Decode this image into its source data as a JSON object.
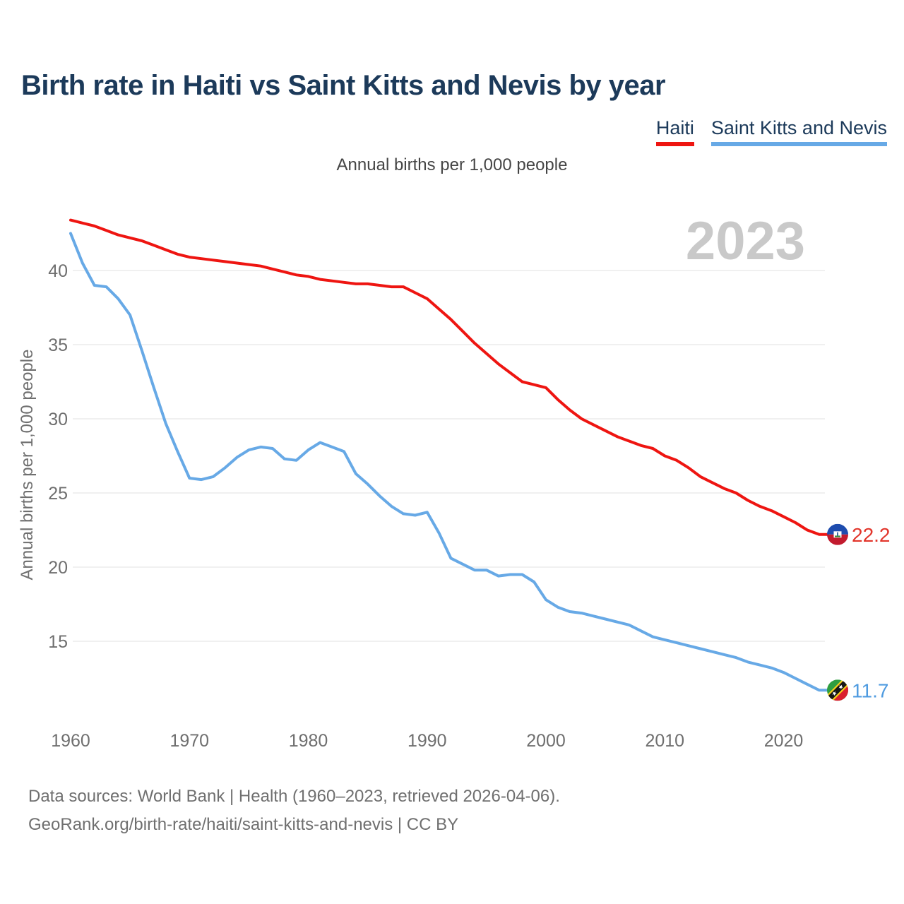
{
  "header": {
    "title": "Birth rate in Haiti vs Saint Kitts and Nevis by year"
  },
  "legend": [
    {
      "label": "Haiti",
      "color": "#ee1511"
    },
    {
      "label": "Saint Kitts and Nevis",
      "color": "#67a9e6"
    }
  ],
  "subtitle": "Annual births per 1,000 people",
  "footer": {
    "line1": "Data sources: World Bank | Health (1960–2023, retrieved 2026-04-06).",
    "line2": "GeoRank.org/birth-rate/haiti/saint-kitts-and-nevis | CC BY"
  },
  "chart_data": {
    "type": "line",
    "title": "Birth rate in Haiti vs Saint Kitts and Nevis by year",
    "ylabel": "Annual births per 1,000 people",
    "watermark": "2023",
    "x_start": 1960,
    "x_end": 2023,
    "x_ticks": [
      1960,
      1970,
      1980,
      1990,
      2000,
      2010,
      2020
    ],
    "y_ticks": [
      15,
      20,
      25,
      30,
      35,
      40
    ],
    "ylim": [
      10.5,
      43.5
    ],
    "grid": "horizontal",
    "legend_position": "top-right",
    "series": [
      {
        "name": "Haiti",
        "color": "#ee1511",
        "label_color": "#e2352b",
        "end_label": "22.2",
        "flag_icon": "haiti-flag-icon",
        "values": [
          43.4,
          43.2,
          43.0,
          42.7,
          42.4,
          42.2,
          42.0,
          41.7,
          41.4,
          41.1,
          40.9,
          40.8,
          40.7,
          40.6,
          40.5,
          40.4,
          40.3,
          40.1,
          39.9,
          39.7,
          39.6,
          39.4,
          39.3,
          39.2,
          39.1,
          39.1,
          39.0,
          38.9,
          38.9,
          38.5,
          38.1,
          37.4,
          36.7,
          35.9,
          35.1,
          34.4,
          33.7,
          33.1,
          32.5,
          32.3,
          32.1,
          31.3,
          30.6,
          30.0,
          29.6,
          29.2,
          28.8,
          28.5,
          28.2,
          28.0,
          27.5,
          27.2,
          26.7,
          26.1,
          25.7,
          25.3,
          25.0,
          24.5,
          24.1,
          23.8,
          23.4,
          23.0,
          22.5,
          22.2
        ]
      },
      {
        "name": "Saint Kitts and Nevis",
        "color": "#67a9e6",
        "label_color": "#4f9be0",
        "end_label": "11.7",
        "flag_icon": "saint-kitts-and-nevis-flag-icon",
        "values": [
          42.5,
          40.5,
          39.0,
          38.9,
          38.1,
          37.0,
          34.6,
          32.1,
          29.7,
          27.8,
          26.0,
          25.9,
          26.1,
          26.7,
          27.4,
          27.9,
          28.1,
          28.0,
          27.3,
          27.2,
          27.9,
          28.4,
          28.1,
          27.8,
          26.3,
          25.6,
          24.8,
          24.1,
          23.6,
          23.5,
          23.7,
          22.3,
          20.6,
          20.2,
          19.8,
          19.8,
          19.4,
          19.5,
          19.5,
          19.0,
          17.8,
          17.3,
          17.0,
          16.9,
          16.7,
          16.5,
          16.3,
          16.1,
          15.7,
          15.3,
          15.1,
          14.9,
          14.7,
          14.5,
          14.3,
          14.1,
          13.9,
          13.6,
          13.4,
          13.2,
          12.9,
          12.5,
          12.1,
          11.7
        ]
      }
    ]
  }
}
